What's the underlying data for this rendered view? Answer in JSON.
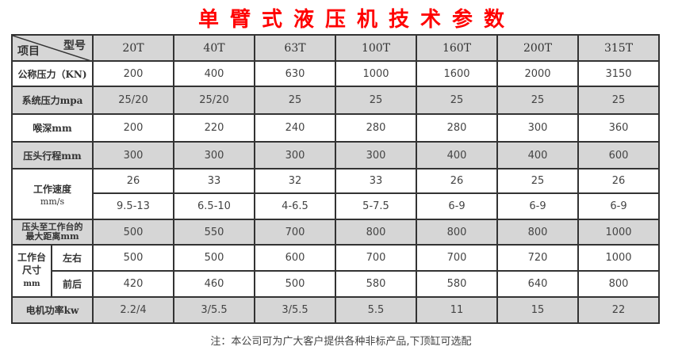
{
  "title": "单臂式液压机技术参数",
  "header": {
    "model_label": "型号",
    "item_label": "项目",
    "models": [
      "20T",
      "40T",
      "63T",
      "100T",
      "160T",
      "200T",
      "315T"
    ]
  },
  "rows": {
    "nominal_force": {
      "label": "公称压力（KN)",
      "values": [
        "200",
        "400",
        "630",
        "1000",
        "1600",
        "2000",
        "3150"
      ]
    },
    "system_pressure": {
      "label": "系统压力mpa",
      "values": [
        "25/20",
        "25/20",
        "25",
        "25",
        "25",
        "25",
        "25"
      ]
    },
    "throat_depth": {
      "label": "喉深mm",
      "values": [
        "200",
        "220",
        "240",
        "280",
        "280",
        "300",
        "360"
      ]
    },
    "ram_stroke": {
      "label": "压头行程mm",
      "values": [
        "300",
        "300",
        "300",
        "300",
        "400",
        "400",
        "600"
      ]
    },
    "working_speed": {
      "label": "工作速度",
      "unit": "mm/s",
      "values": [
        "26",
        "33",
        "32",
        "33",
        "26",
        "25",
        "26"
      ],
      "values2": [
        "9.5-13",
        "6.5-10",
        "4-6.5",
        "5-7.5",
        "6-9",
        "6-9",
        "6-9"
      ]
    },
    "max_distance": {
      "label": "压头至工作台的",
      "label2": "最大距离mm",
      "values": [
        "500",
        "550",
        "700",
        "800",
        "800",
        "800",
        "1000"
      ]
    },
    "table_size": {
      "label": "工作台",
      "label2": "尺寸",
      "unit": "mm",
      "lr_label": "左右",
      "fb_label": "前后",
      "lr": [
        "500",
        "500",
        "600",
        "700",
        "700",
        "720",
        "1000"
      ],
      "fb": [
        "420",
        "460",
        "500",
        "580",
        "580",
        "640",
        "800"
      ]
    },
    "motor_power": {
      "label": "电机功率kw",
      "values": [
        "2.2/4",
        "3/5.5",
        "3/5.5",
        "5.5",
        "11",
        "15",
        "22"
      ]
    }
  },
  "note": "注：本公司可为广大客户提供各种非标产品,下顶缸可选配"
}
